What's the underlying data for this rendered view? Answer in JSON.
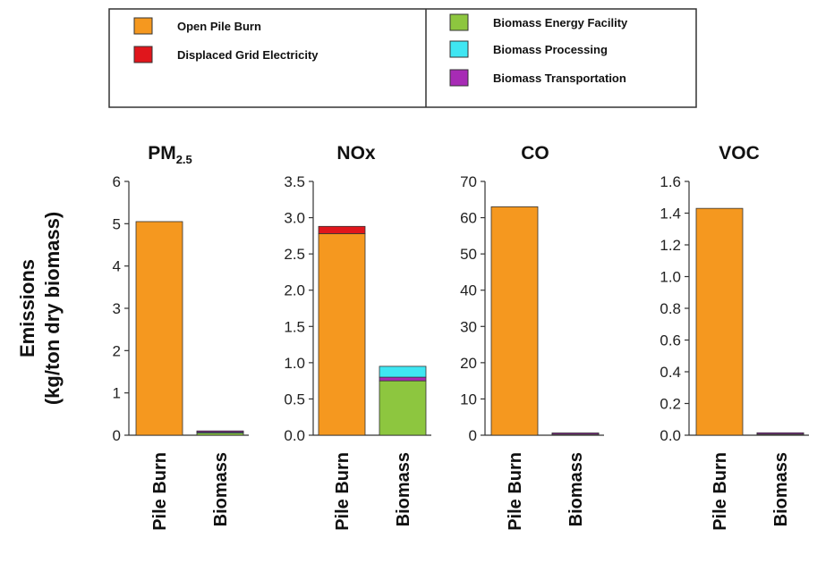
{
  "legend": {
    "items": [
      {
        "label": "Open Pile Burn",
        "color": "#F5981F"
      },
      {
        "label": "Displaced Grid Electricity",
        "color": "#E0161C"
      },
      {
        "label": "Biomass Energy Facility",
        "color": "#8DC63F"
      },
      {
        "label": "Biomass Processing",
        "color": "#3FE6F2"
      },
      {
        "label": "Biomass Transportation",
        "color": "#A72BB5"
      }
    ]
  },
  "ylabel_line1": "Emissions",
  "ylabel_line2": "(kg/ton dry biomass)",
  "chart_data": [
    {
      "type": "bar",
      "stacked": true,
      "title": "PM",
      "title_subscript": "2.5",
      "categories": [
        "Pile Burn",
        "Biomass"
      ],
      "ylim": [
        0,
        6
      ],
      "yticks": [
        "0",
        "1",
        "2",
        "3",
        "4",
        "5",
        "6"
      ],
      "series": [
        {
          "name": "Open Pile Burn",
          "color": "#F5981F",
          "values": [
            5.05,
            0
          ]
        },
        {
          "name": "Displaced Grid Electricity",
          "color": "#E0161C",
          "values": [
            0,
            -0.02
          ]
        },
        {
          "name": "Biomass Energy Facility",
          "color": "#8DC63F",
          "values": [
            0,
            0.05
          ]
        },
        {
          "name": "Biomass Processing",
          "color": "#3FE6F2",
          "values": [
            0,
            0.02
          ]
        },
        {
          "name": "Biomass Transportation",
          "color": "#A72BB5",
          "values": [
            0,
            0.03
          ]
        }
      ]
    },
    {
      "type": "bar",
      "stacked": true,
      "title": "NOx",
      "title_subscript": "",
      "categories": [
        "Pile Burn",
        "Biomass"
      ],
      "ylim": [
        0,
        3.5
      ],
      "yticks": [
        "0.0",
        "0.5",
        "1.0",
        "1.5",
        "2.0",
        "2.5",
        "3.0",
        "3.5"
      ],
      "series": [
        {
          "name": "Open Pile Burn",
          "color": "#F5981F",
          "values": [
            2.78,
            0
          ]
        },
        {
          "name": "Displaced Grid Electricity",
          "color": "#E0161C",
          "values": [
            0.1,
            0
          ]
        },
        {
          "name": "Biomass Energy Facility",
          "color": "#8DC63F",
          "values": [
            0,
            0.75
          ]
        },
        {
          "name": "Biomass Transportation",
          "color": "#A72BB5",
          "values": [
            0,
            0.05
          ]
        },
        {
          "name": "Biomass Processing",
          "color": "#3FE6F2",
          "values": [
            0,
            0.15
          ]
        }
      ]
    },
    {
      "type": "bar",
      "stacked": true,
      "title": "CO",
      "title_subscript": "",
      "categories": [
        "Pile Burn",
        "Biomass"
      ],
      "ylim": [
        0,
        70
      ],
      "yticks": [
        "0",
        "10",
        "20",
        "30",
        "40",
        "50",
        "60",
        "70"
      ],
      "series": [
        {
          "name": "Open Pile Burn",
          "color": "#F5981F",
          "values": [
            63,
            0
          ]
        },
        {
          "name": "Biomass Energy Facility",
          "color": "#8DC63F",
          "values": [
            0,
            0.2
          ]
        },
        {
          "name": "Biomass Processing",
          "color": "#3FE6F2",
          "values": [
            0,
            0.05
          ]
        },
        {
          "name": "Biomass Transportation",
          "color": "#A72BB5",
          "values": [
            0,
            0.1
          ]
        }
      ]
    },
    {
      "type": "bar",
      "stacked": true,
      "title": "VOC",
      "title_subscript": "",
      "categories": [
        "Pile Burn",
        "Biomass"
      ],
      "ylim": [
        0,
        1.6
      ],
      "yticks": [
        "0.0",
        "0.2",
        "0.4",
        "0.6",
        "0.8",
        "1.0",
        "1.2",
        "1.4",
        "1.6"
      ],
      "series": [
        {
          "name": "Open Pile Burn",
          "color": "#F5981F",
          "values": [
            1.43,
            0
          ]
        },
        {
          "name": "Biomass Energy Facility",
          "color": "#8DC63F",
          "values": [
            0,
            0.005
          ]
        },
        {
          "name": "Biomass Processing",
          "color": "#3FE6F2",
          "values": [
            0,
            0.002
          ]
        },
        {
          "name": "Biomass Transportation",
          "color": "#A72BB5",
          "values": [
            0,
            0.003
          ]
        }
      ]
    }
  ]
}
